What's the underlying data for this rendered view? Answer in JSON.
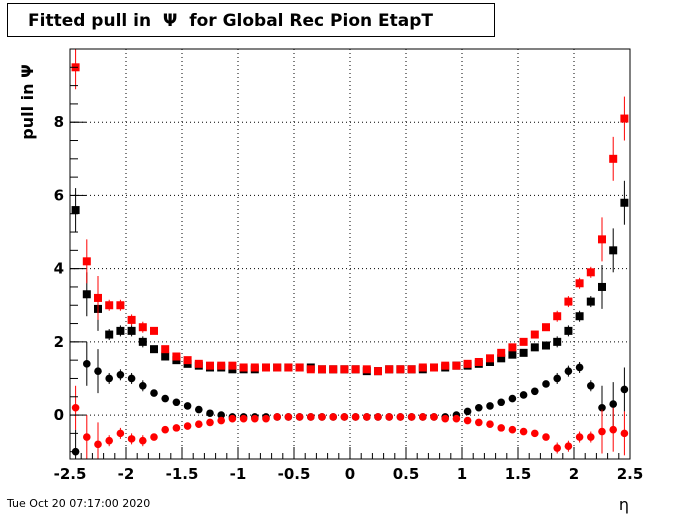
{
  "header": {
    "title": "Fitted pull in  Ψ  for Global Rec Pion EtapT"
  },
  "footer": {
    "timestamp": "Tue Oct 20 07:17:00 2020"
  },
  "chart_data": {
    "type": "scatter",
    "title": "Fitted pull in  Ψ  for Global Rec Pion EtapT",
    "xlabel": "η",
    "ylabel": "pull in  Ψ",
    "xlim": [
      -2.5,
      2.5
    ],
    "ylim": [
      -1.2,
      10.0
    ],
    "x_ticks": [
      "-2.5",
      "-2",
      "-1.5",
      "-1",
      "-0.5",
      "0",
      "0.5",
      "1",
      "1.5",
      "2",
      "2.5"
    ],
    "y_ticks": [
      "0",
      "2",
      "4",
      "6",
      "8"
    ],
    "grid": true,
    "x": [
      -2.45,
      -2.35,
      -2.25,
      -2.15,
      -2.05,
      -1.95,
      -1.85,
      -1.75,
      -1.65,
      -1.55,
      -1.45,
      -1.35,
      -1.25,
      -1.15,
      -1.05,
      -0.95,
      -0.85,
      -0.75,
      -0.65,
      -0.55,
      -0.45,
      -0.35,
      -0.25,
      -0.15,
      -0.05,
      0.05,
      0.15,
      0.25,
      0.35,
      0.45,
      0.55,
      0.65,
      0.75,
      0.85,
      0.95,
      1.05,
      1.15,
      1.25,
      1.35,
      1.45,
      1.55,
      1.65,
      1.75,
      1.85,
      1.95,
      2.05,
      2.15,
      2.25,
      2.35,
      2.45
    ],
    "series": [
      {
        "name": "",
        "marker": "square",
        "color": "#000000",
        "values": [
          5.6,
          3.3,
          2.9,
          2.2,
          2.3,
          2.3,
          2.0,
          1.8,
          1.6,
          1.5,
          1.4,
          1.35,
          1.3,
          1.3,
          1.25,
          1.25,
          1.25,
          1.3,
          1.3,
          1.3,
          1.3,
          1.3,
          1.25,
          1.25,
          1.25,
          1.25,
          1.2,
          1.2,
          1.25,
          1.25,
          1.25,
          1.25,
          1.3,
          1.3,
          1.35,
          1.35,
          1.4,
          1.45,
          1.55,
          1.65,
          1.7,
          1.85,
          1.9,
          2.0,
          2.3,
          2.7,
          3.1,
          3.5,
          4.5,
          5.8
        ]
      },
      {
        "name": "",
        "marker": "square",
        "color": "#ff0000",
        "values": [
          9.5,
          4.2,
          3.2,
          3.0,
          3.0,
          2.6,
          2.4,
          2.3,
          1.8,
          1.6,
          1.5,
          1.4,
          1.35,
          1.35,
          1.35,
          1.3,
          1.3,
          1.3,
          1.3,
          1.3,
          1.3,
          1.25,
          1.25,
          1.25,
          1.25,
          1.25,
          1.25,
          1.2,
          1.25,
          1.25,
          1.25,
          1.3,
          1.3,
          1.35,
          1.35,
          1.4,
          1.45,
          1.55,
          1.7,
          1.85,
          2.0,
          2.2,
          2.4,
          2.7,
          3.1,
          3.6,
          3.9,
          4.8,
          7.0,
          8.1
        ]
      },
      {
        "name": "",
        "marker": "circle",
        "color": "#000000",
        "values": [
          -1.0,
          1.4,
          1.2,
          1.0,
          1.1,
          1.0,
          0.8,
          0.6,
          0.45,
          0.35,
          0.25,
          0.15,
          0.05,
          0.0,
          -0.05,
          -0.05,
          -0.05,
          -0.05,
          -0.05,
          -0.05,
          -0.05,
          -0.05,
          -0.05,
          -0.05,
          -0.05,
          -0.05,
          -0.05,
          -0.05,
          -0.05,
          -0.05,
          -0.05,
          -0.05,
          -0.05,
          -0.05,
          0.0,
          0.1,
          0.2,
          0.25,
          0.35,
          0.45,
          0.55,
          0.65,
          0.85,
          1.0,
          1.2,
          1.3,
          0.8,
          0.2,
          0.3,
          0.7
        ]
      },
      {
        "name": "",
        "marker": "circle",
        "color": "#ff0000",
        "values": [
          0.2,
          -0.6,
          -0.8,
          -0.7,
          -0.5,
          -0.65,
          -0.7,
          -0.6,
          -0.4,
          -0.35,
          -0.3,
          -0.25,
          -0.2,
          -0.15,
          -0.1,
          -0.1,
          -0.1,
          -0.1,
          -0.05,
          -0.05,
          -0.05,
          -0.05,
          -0.05,
          -0.05,
          -0.05,
          -0.05,
          -0.05,
          -0.05,
          -0.05,
          -0.05,
          -0.05,
          -0.05,
          -0.05,
          -0.1,
          -0.1,
          -0.15,
          -0.2,
          -0.25,
          -0.35,
          -0.4,
          -0.45,
          -0.5,
          -0.6,
          -0.9,
          -0.85,
          -0.6,
          -0.6,
          -0.45,
          -0.4,
          -0.5
        ]
      }
    ]
  }
}
